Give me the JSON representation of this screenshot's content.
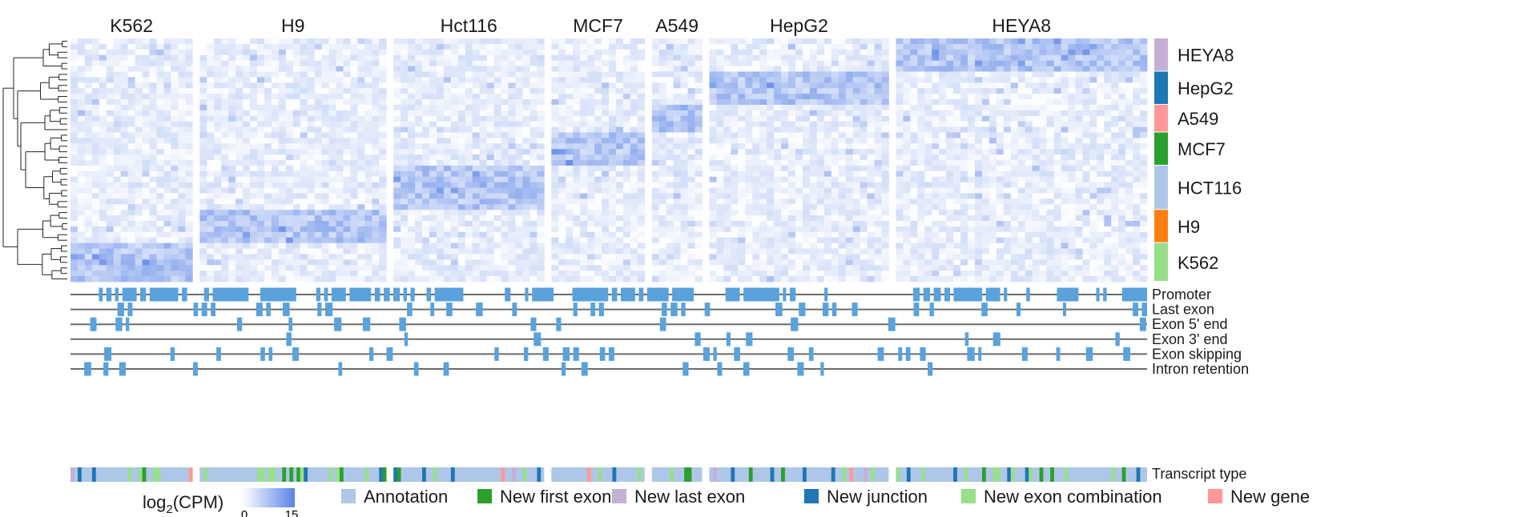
{
  "chart_data": {
    "type": "heatmap",
    "title": "",
    "colorbar": {
      "label": "log2(CPM)",
      "label_base": "log",
      "label_sub": "2",
      "label_rest": "(CPM)",
      "min": 0,
      "max": 15,
      "tick_min": "0",
      "tick_max": "15",
      "color_low": "#ffffff",
      "color_high": "#5b84e6"
    },
    "column_groups": [
      {
        "label": "K562",
        "columns": 17
      },
      {
        "label": "H9",
        "columns": 26
      },
      {
        "label": "Hct116",
        "columns": 21
      },
      {
        "label": "MCF7",
        "columns": 13
      },
      {
        "label": "A549",
        "columns": 7
      },
      {
        "label": "HepG2",
        "columns": 25
      },
      {
        "label": "HEYA8",
        "columns": 35
      }
    ],
    "row_groups": [
      {
        "label": "HEYA8",
        "rows": 6,
        "color": "#c5b0d5"
      },
      {
        "label": "HepG2",
        "rows": 6,
        "color": "#1f77b4"
      },
      {
        "label": "A549",
        "rows": 5,
        "color": "#ff9896"
      },
      {
        "label": "MCF7",
        "rows": 6,
        "color": "#2ca02c"
      },
      {
        "label": "HCT116",
        "rows": 8,
        "color": "#aec7e8"
      },
      {
        "label": "H9",
        "rows": 6,
        "color": "#ff7f0e"
      },
      {
        "label": "K562",
        "rows": 7,
        "color": "#98df8a"
      }
    ],
    "feature_tracks": [
      {
        "label": "Promoter",
        "density": 0.55
      },
      {
        "label": "Last exon",
        "density": 0.3
      },
      {
        "label": "Exon 5' end",
        "density": 0.12
      },
      {
        "label": "Exon 3' end",
        "density": 0.1
      },
      {
        "label": "Exon skipping",
        "density": 0.28
      },
      {
        "label": "Intron retention",
        "density": 0.12
      }
    ],
    "transcript_type_track": {
      "label": "Transcript type"
    },
    "legend": {
      "placement": "bottom",
      "entries": [
        {
          "label": "Annotation",
          "color": "#aec7e8"
        },
        {
          "label": "New first exon",
          "color": "#2ca02c"
        },
        {
          "label": "New last exon",
          "color": "#c5b0d5"
        },
        {
          "label": "New junction",
          "color": "#1f77b4"
        },
        {
          "label": "New exon combination",
          "color": "#98df8a"
        },
        {
          "label": "New gene",
          "color": "#ff9896"
        }
      ]
    }
  },
  "colors": {
    "track_fill": "#5aa2dc",
    "track_line": "#6b6b6b",
    "dendrogram": "#222222"
  }
}
